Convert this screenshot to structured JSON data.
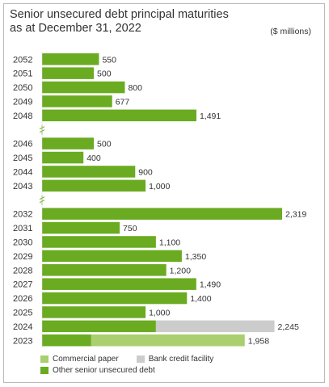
{
  "title_line1": "Senior unsecured debt principal maturities",
  "title_line2": "as at December 31, 2022",
  "units": "($ millions)",
  "colors": {
    "dark_green": "#6aab22",
    "light_green": "#a9cf6e",
    "gray": "#cccccc",
    "text": "#333333"
  },
  "legend": {
    "commercial_paper": "Commercial paper",
    "bank_credit_facility": "Bank credit facility",
    "other_debt": "Other senior unsecured debt"
  },
  "chart_data": {
    "type": "bar",
    "orientation": "horizontal",
    "title": "Senior unsecured debt principal maturities as at December 31, 2022",
    "units": "($ millions)",
    "categories": [
      "2052",
      "2051",
      "2050",
      "2049",
      "2048",
      "2046",
      "2045",
      "2044",
      "2043",
      "2032",
      "2031",
      "2030",
      "2029",
      "2028",
      "2027",
      "2026",
      "2025",
      "2024",
      "2023"
    ],
    "series": [
      {
        "name": "Other senior unsecured debt",
        "values": [
          550,
          500,
          800,
          677,
          1491,
          500,
          400,
          900,
          1000,
          2319,
          750,
          1100,
          1350,
          1200,
          1490,
          1400,
          1000,
          1100,
          475
        ]
      },
      {
        "name": "Bank credit facility",
        "values": [
          0,
          0,
          0,
          0,
          0,
          0,
          0,
          0,
          0,
          0,
          0,
          0,
          0,
          0,
          0,
          0,
          0,
          1145,
          0
        ]
      },
      {
        "name": "Commercial paper",
        "values": [
          0,
          0,
          0,
          0,
          0,
          0,
          0,
          0,
          0,
          0,
          0,
          0,
          0,
          0,
          0,
          0,
          0,
          0,
          1483
        ]
      }
    ],
    "totals": [
      550,
      500,
      800,
      677,
      1491,
      500,
      400,
      900,
      1000,
      2319,
      750,
      1100,
      1350,
      1200,
      1490,
      1400,
      1000,
      2245,
      1958
    ],
    "total_labels": [
      "550",
      "500",
      "800",
      "677",
      "1,491",
      "500",
      "400",
      "900",
      "1,000",
      "2,319",
      "750",
      "1,100",
      "1,350",
      "1,200",
      "1,490",
      "1,400",
      "1,000",
      "2,245",
      "1,958"
    ],
    "axis_breaks_after": [
      "2048",
      "2043"
    ],
    "xlim": [
      0,
      2319
    ],
    "legend_position": "bottom-left"
  }
}
